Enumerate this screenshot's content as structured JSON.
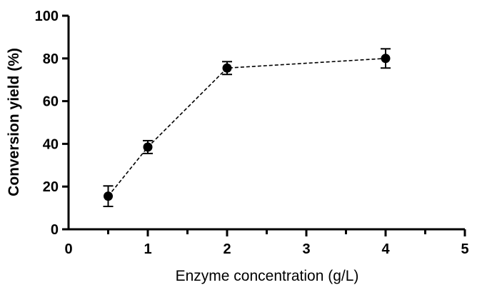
{
  "chart_data": {
    "type": "line",
    "title": "",
    "xlabel": "Enzyme concentration (g/L)",
    "ylabel": "Conversion yield (%)",
    "xlim": [
      0,
      5
    ],
    "ylim": [
      0,
      100
    ],
    "x_ticks": [
      "0",
      "1",
      "2",
      "3",
      "4",
      "5"
    ],
    "x_tick_values": [
      0,
      1,
      2,
      3,
      4,
      5
    ],
    "y_ticks": [
      "0",
      "20",
      "40",
      "60",
      "80",
      "100"
    ],
    "y_tick_values": [
      0,
      20,
      40,
      60,
      80,
      100
    ],
    "grid": false,
    "line_style": "dashed",
    "marker": "circle",
    "color": "#000000",
    "series": [
      {
        "x": [
          0.5,
          1,
          2,
          4
        ],
        "y": [
          15.5,
          38.5,
          75.5,
          80
        ],
        "error": [
          4.8,
          3,
          3,
          4.5
        ]
      }
    ]
  }
}
